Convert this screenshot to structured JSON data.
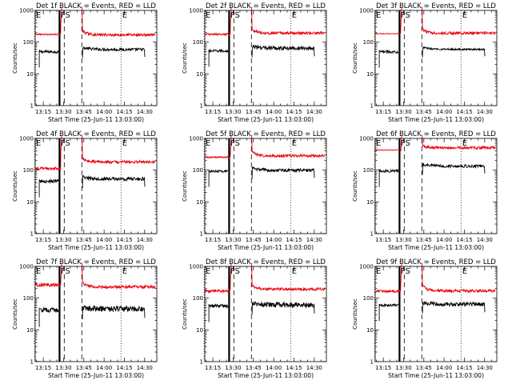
{
  "chart_data": [
    {
      "type": "line",
      "title": "Det 1f BLACK = Events, RED = LLD",
      "xlabel": "Start Time (25-Jun-11 13:03:00)",
      "ylabel": "Counts/sec",
      "xticks": [
        "13:15",
        "13:30",
        "13:45",
        "14:00",
        "14:15",
        "14:30"
      ],
      "ylim": [
        1,
        1000
      ],
      "yscale": "log",
      "yticks": [
        "1",
        "10",
        "100",
        "1000"
      ],
      "markers": [
        "E",
        "FS",
        "E"
      ],
      "series": [
        {
          "color": "#000000",
          "before_min": 45,
          "before_max": 55,
          "after_min": 57,
          "after_max": 70
        },
        {
          "color": "#e8000b",
          "before_min": 165,
          "before_max": 185,
          "after_min": 150,
          "after_max": 260
        }
      ]
    },
    {
      "type": "line",
      "title": "Det 2f BLACK = Events, RED = LLD",
      "xlabel": "Start Time (25-Jun-11 13:03:00)",
      "ylabel": "Counts/sec",
      "xticks": [
        "13:15",
        "13:30",
        "13:45",
        "14:00",
        "14:15",
        "14:30"
      ],
      "ylim": [
        1,
        1000
      ],
      "yscale": "log",
      "yticks": [
        "1",
        "10",
        "100",
        "1000"
      ],
      "markers": [
        "E",
        "FS",
        "E"
      ],
      "series": [
        {
          "color": "#000000",
          "before_min": 48,
          "before_max": 58,
          "after_min": 60,
          "after_max": 80
        },
        {
          "color": "#e8000b",
          "before_min": 165,
          "before_max": 190,
          "after_min": 170,
          "after_max": 300
        }
      ]
    },
    {
      "type": "line",
      "title": "Det 3f BLACK = Events, RED = LLD",
      "xlabel": "Start Time (25-Jun-11 13:03:00)",
      "ylabel": "Counts/sec",
      "xticks": [
        "13:15",
        "13:30",
        "13:45",
        "14:00",
        "14:15",
        "14:30"
      ],
      "ylim": [
        1,
        1000
      ],
      "yscale": "log",
      "yticks": [
        "1",
        "10",
        "100",
        "1000"
      ],
      "markers": [
        "E",
        "FS",
        "E"
      ],
      "series": [
        {
          "color": "#000000",
          "before_min": 45,
          "before_max": 55,
          "after_min": 60,
          "after_max": 68
        },
        {
          "color": "#e8000b",
          "before_min": 180,
          "before_max": 190,
          "after_min": 170,
          "after_max": 290
        }
      ]
    },
    {
      "type": "line",
      "title": "Det 4f BLACK = Events, RED = LLD",
      "xlabel": "Start Time (25-Jun-11 13:03:00)",
      "ylabel": "Counts/sec",
      "xticks": [
        "13:15",
        "13:30",
        "13:45",
        "14:00",
        "14:15",
        "14:30"
      ],
      "ylim": [
        1,
        1000
      ],
      "yscale": "log",
      "yticks": [
        "1",
        "10",
        "100",
        "1000"
      ],
      "markers": [
        "E",
        "FS",
        "E"
      ],
      "series": [
        {
          "color": "#000000",
          "before_min": 40,
          "before_max": 50,
          "after_min": 50,
          "after_max": 65
        },
        {
          "color": "#e8000b",
          "before_min": 100,
          "before_max": 125,
          "after_min": 160,
          "after_max": 260
        }
      ]
    },
    {
      "type": "line",
      "title": "Det 5f BLACK = Events, RED = LLD",
      "xlabel": "Start Time (25-Jun-11 13:03:00)",
      "ylabel": "Counts/sec",
      "xticks": [
        "13:15",
        "13:30",
        "13:45",
        "14:00",
        "14:15",
        "14:30"
      ],
      "ylim": [
        1,
        1000
      ],
      "yscale": "log",
      "yticks": [
        "1",
        "10",
        "100",
        "1000"
      ],
      "markers": [
        "E",
        "FS",
        "E"
      ],
      "series": [
        {
          "color": "#000000",
          "before_min": 85,
          "before_max": 100,
          "after_min": 95,
          "after_max": 120
        },
        {
          "color": "#e8000b",
          "before_min": 240,
          "before_max": 270,
          "after_min": 250,
          "after_max": 420
        }
      ]
    },
    {
      "type": "line",
      "title": "Det 6f BLACK = Events, RED = LLD",
      "xlabel": "Start Time (25-Jun-11 13:03:00)",
      "ylabel": "Counts/sec",
      "xticks": [
        "13:15",
        "13:30",
        "13:45",
        "14:00",
        "14:15",
        "14:30"
      ],
      "ylim": [
        1,
        1000
      ],
      "yscale": "log",
      "yticks": [
        "1",
        "10",
        "100",
        "1000"
      ],
      "markers": [
        "E",
        "FS",
        "E"
      ],
      "series": [
        {
          "color": "#000000",
          "before_min": 85,
          "before_max": 105,
          "after_min": 130,
          "after_max": 160
        },
        {
          "color": "#e8000b",
          "before_min": 420,
          "before_max": 440,
          "after_min": 450,
          "after_max": 600
        }
      ]
    },
    {
      "type": "line",
      "title": "Det 7f BLACK = Events, RED = LLD",
      "xlabel": "Start Time (25-Jun-11 13:03:00)",
      "ylabel": "Counts/sec",
      "xticks": [
        "13:15",
        "13:30",
        "13:45",
        "14:00",
        "14:15",
        "14:30"
      ],
      "ylim": [
        1,
        1000
      ],
      "yscale": "log",
      "yticks": [
        "1",
        "10",
        "100",
        "1000"
      ],
      "markers": [
        "E",
        "FS",
        "E"
      ],
      "series": [
        {
          "color": "#000000",
          "before_min": 35,
          "before_max": 50,
          "after_min": 40,
          "after_max": 60
        },
        {
          "color": "#e8000b",
          "before_min": 230,
          "before_max": 300,
          "after_min": 200,
          "after_max": 350
        }
      ]
    },
    {
      "type": "line",
      "title": "Det 8f BLACK = Events, RED = LLD",
      "xlabel": "Start Time (25-Jun-11 13:03:00)",
      "ylabel": "Counts/sec",
      "xticks": [
        "13:15",
        "13:30",
        "13:45",
        "14:00",
        "14:15",
        "14:30"
      ],
      "ylim": [
        1,
        1000
      ],
      "yscale": "log",
      "yticks": [
        "1",
        "10",
        "100",
        "1000"
      ],
      "markers": [
        "E",
        "FS",
        "E"
      ],
      "series": [
        {
          "color": "#000000",
          "before_min": 50,
          "before_max": 65,
          "after_min": 55,
          "after_max": 80
        },
        {
          "color": "#e8000b",
          "before_min": 150,
          "before_max": 185,
          "after_min": 170,
          "after_max": 300
        }
      ]
    },
    {
      "type": "line",
      "title": "Det 9f BLACK = Events, RED = LLD",
      "xlabel": "Start Time (25-Jun-11 13:03:00)",
      "ylabel": "Counts/sec",
      "xticks": [
        "13:15",
        "13:30",
        "13:45",
        "14:00",
        "14:15",
        "14:30"
      ],
      "ylim": [
        1,
        1000
      ],
      "yscale": "log",
      "yticks": [
        "1",
        "10",
        "100",
        "1000"
      ],
      "markers": [
        "E",
        "FS",
        "E"
      ],
      "series": [
        {
          "color": "#000000",
          "before_min": 55,
          "before_max": 65,
          "after_min": 60,
          "after_max": 80
        },
        {
          "color": "#e8000b",
          "before_min": 150,
          "before_max": 180,
          "after_min": 150,
          "after_max": 320
        }
      ]
    }
  ]
}
